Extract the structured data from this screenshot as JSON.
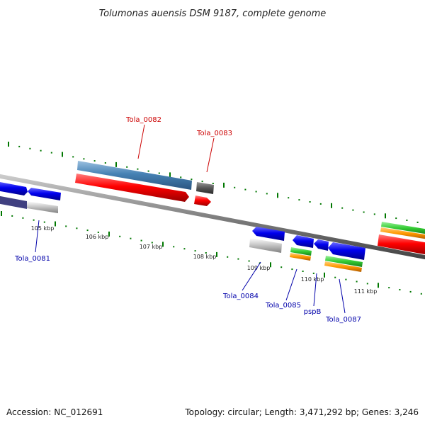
{
  "title": "Tolumonas auensis DSM 9187, complete genome",
  "footer": {
    "accession": "Accession: NC_012691",
    "summary": "Topology: circular; Length: 3,471,292 bp; Genes: 3,246"
  },
  "ticks": [
    {
      "label": "105 kbp"
    },
    {
      "label": "106 kbp"
    },
    {
      "label": "107 kbp"
    },
    {
      "label": "108 kbp"
    },
    {
      "label": "109 kbp"
    },
    {
      "label": "110 kbp"
    },
    {
      "label": "111 kbp"
    }
  ],
  "genes": [
    {
      "label": "Tola_0081",
      "color": "#0000aa"
    },
    {
      "label": "Tola_0082",
      "color": "#cc0000"
    },
    {
      "label": "Tola_0083",
      "color": "#cc0000"
    },
    {
      "label": "Tola_0084",
      "color": "#0000aa"
    },
    {
      "label": "Tola_0085",
      "color": "#0000aa"
    },
    {
      "label": "pspB",
      "color": "#0000aa"
    },
    {
      "label": "Tola_0087",
      "color": "#0000aa"
    }
  ],
  "colors": {
    "forward_gene": "#ff0000",
    "reverse_gene": "#0000ee",
    "cds_forward": "#4682b4",
    "cds_reverse": "#c8c8c8",
    "tick": "#007700",
    "backbone": "#808080",
    "green_feature": "#33cc33",
    "orange_feature": "#ff9900"
  }
}
